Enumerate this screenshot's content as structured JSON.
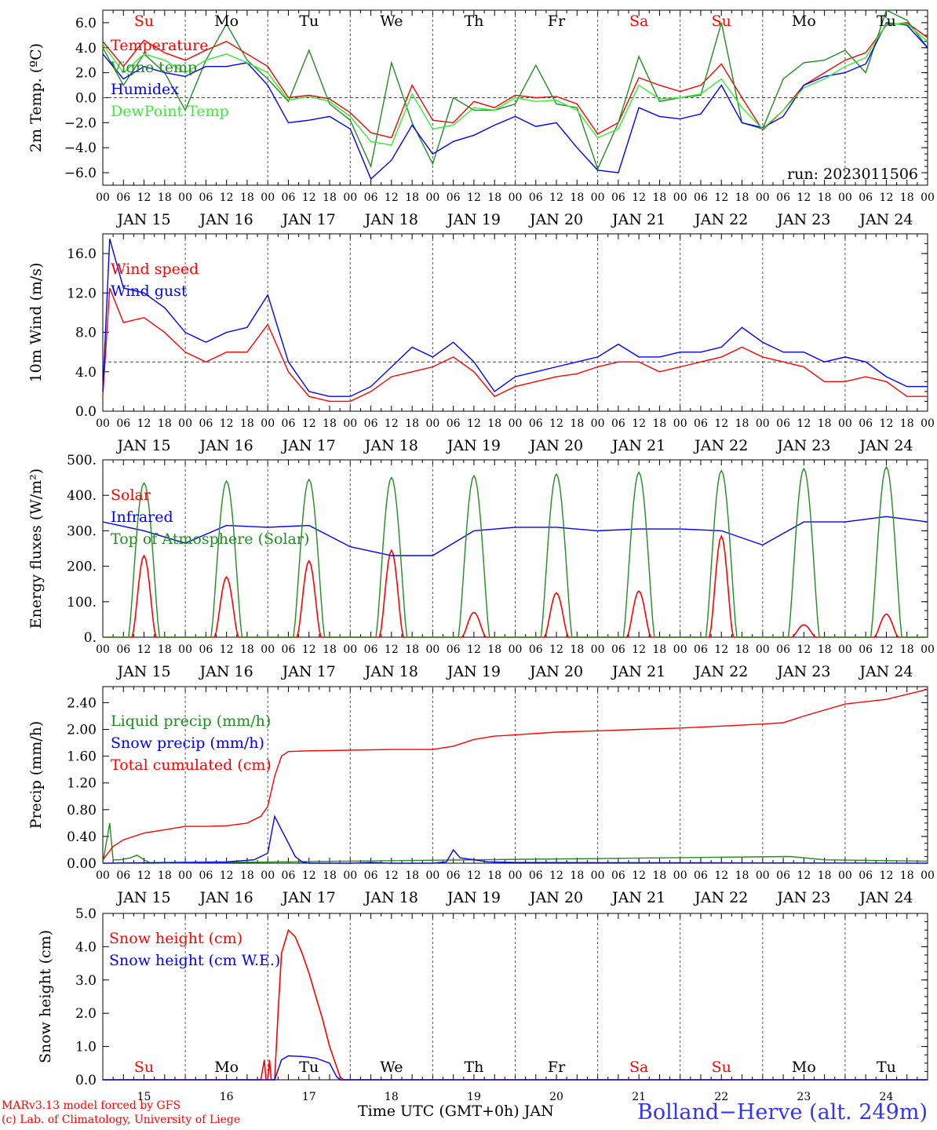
{
  "run_label": "run: 2023011506",
  "station": "Bolland−Herve (alt. 249m)",
  "time_axis_label": "Time UTC (GMT+0h) JAN",
  "credit_line1": "MARv3.13 model forced by GFS",
  "credit_line2": "(c) Lab. of Climatology, University of Liege",
  "weekdays": [
    "Su",
    "Mo",
    "Tu",
    "We",
    "Th",
    "Fr",
    "Sa",
    "Su",
    "Mo",
    "Tu"
  ],
  "weekday_colors": [
    "#ff0000",
    "#000000",
    "#000000",
    "#000000",
    "#000000",
    "#000000",
    "#ff0000",
    "#ff0000",
    "#000000",
    "#000000"
  ],
  "day_labels": [
    "JAN 15",
    "JAN 16",
    "JAN 17",
    "JAN 18",
    "JAN 19",
    "JAN 20",
    "JAN 21",
    "JAN 22",
    "JAN 23",
    "JAN 24"
  ],
  "day_numbers": [
    "15",
    "16",
    "17",
    "18",
    "19",
    "20",
    "21",
    "22",
    "23",
    "24"
  ],
  "hour_ticks": [
    "00",
    "06",
    "12",
    "18"
  ],
  "chart_data": [
    {
      "type": "line",
      "id": "temp",
      "ylabel": "2m Temp. (ºC)",
      "ylim": [
        -7,
        7
      ],
      "yticks": [
        -6,
        -4,
        -2,
        0,
        2,
        4,
        6
      ],
      "ytick_labels": [
        "−6.0",
        "−4.0",
        "−2.0",
        "0.0",
        "2.0",
        "4.0",
        "6.0"
      ],
      "ref_line": 0,
      "x_unit": "hours since JAN 15 00 UTC",
      "series": [
        {
          "name": "Temperature",
          "color": "#ff0000",
          "x": [
            0,
            6,
            12,
            18,
            24,
            30,
            36,
            42,
            48,
            54,
            60,
            66,
            72,
            78,
            84,
            90,
            96,
            102,
            108,
            114,
            120,
            126,
            132,
            138,
            144,
            150,
            156,
            162,
            168,
            174,
            180,
            186,
            192,
            198,
            204,
            210,
            216,
            222,
            228,
            234,
            240
          ],
          "y": [
            4.5,
            2.5,
            4.6,
            3.6,
            3.0,
            3.8,
            4.5,
            3.5,
            2.5,
            0.0,
            0.2,
            -0.1,
            -1.2,
            -2.8,
            -3.2,
            1.0,
            -1.8,
            -2.0,
            -0.3,
            -0.8,
            0.2,
            0.0,
            0.1,
            -0.5,
            -2.9,
            -2.0,
            1.6,
            1.0,
            0.5,
            1.0,
            2.7,
            0.0,
            -2.6,
            -1.0,
            1.0,
            2.0,
            3.0,
            3.6,
            5.8,
            6.0,
            4.8
          ]
        },
        {
          "name": "Vigne temp",
          "color": "#228b22",
          "x": [
            0,
            6,
            12,
            18,
            24,
            30,
            36,
            42,
            48,
            54,
            60,
            66,
            72,
            78,
            84,
            90,
            96,
            102,
            108,
            114,
            120,
            126,
            132,
            138,
            144,
            150,
            156,
            162,
            168,
            174,
            180,
            186,
            192,
            198,
            204,
            210,
            216,
            222,
            228,
            234,
            240
          ],
          "y": [
            4.0,
            1.0,
            3.5,
            2.0,
            -1.0,
            3.0,
            5.9,
            3.0,
            1.5,
            -0.3,
            3.8,
            -0.5,
            -1.8,
            -5.5,
            2.8,
            -2.0,
            -5.3,
            0.0,
            -1.0,
            -1.0,
            -0.5,
            2.6,
            -0.5,
            -0.8,
            -5.7,
            -2.0,
            3.3,
            -0.3,
            0.0,
            0.2,
            6.0,
            -2.0,
            -2.5,
            1.5,
            2.8,
            3.0,
            3.8,
            2.0,
            7.0,
            6.2,
            4.0
          ]
        },
        {
          "name": "Humidex",
          "color": "#0000ff",
          "x": [
            0,
            6,
            12,
            18,
            24,
            30,
            36,
            42,
            48,
            54,
            60,
            66,
            72,
            78,
            84,
            90,
            96,
            102,
            108,
            114,
            120,
            126,
            132,
            138,
            144,
            150,
            156,
            162,
            168,
            174,
            180,
            186,
            192,
            198,
            204,
            210,
            216,
            222,
            228,
            234,
            240
          ],
          "y": [
            3.5,
            1.5,
            2.5,
            2.0,
            1.7,
            2.5,
            2.5,
            2.8,
            1.0,
            -2.0,
            -1.8,
            -1.5,
            -2.5,
            -6.5,
            -5.0,
            -2.2,
            -4.5,
            -3.5,
            -3.0,
            -2.2,
            -1.5,
            -2.3,
            -2.0,
            -4.0,
            -5.8,
            -6.0,
            -0.8,
            -1.5,
            -1.7,
            -1.3,
            1.0,
            -2.0,
            -2.4,
            -1.5,
            1.0,
            1.7,
            2.0,
            2.7,
            6.0,
            5.8,
            4.0
          ]
        },
        {
          "name": "DewPoint Temp",
          "color": "#33ee33",
          "x": [
            0,
            6,
            12,
            18,
            24,
            30,
            36,
            42,
            48,
            54,
            60,
            66,
            72,
            78,
            84,
            90,
            96,
            102,
            108,
            114,
            120,
            126,
            132,
            138,
            144,
            150,
            156,
            162,
            168,
            174,
            180,
            186,
            192,
            198,
            204,
            210,
            216,
            222,
            228,
            234,
            240
          ],
          "y": [
            4.3,
            2.0,
            3.5,
            3.0,
            2.0,
            3.0,
            3.5,
            2.8,
            2.0,
            -0.2,
            0.1,
            -0.3,
            -1.5,
            -3.5,
            -3.8,
            0.3,
            -2.5,
            -2.2,
            -0.8,
            -1.0,
            0.0,
            -0.3,
            -0.2,
            -1.0,
            -3.2,
            -2.5,
            1.0,
            -0.1,
            0.0,
            0.3,
            1.5,
            -0.8,
            -2.5,
            -1.0,
            0.8,
            1.5,
            2.5,
            3.2,
            5.9,
            5.9,
            4.5
          ]
        }
      ]
    },
    {
      "type": "line",
      "id": "wind",
      "ylabel": "10m Wind (m/s)",
      "ylim": [
        0,
        18
      ],
      "yticks": [
        0,
        4,
        8,
        12,
        16
      ],
      "ytick_labels": [
        "0.0",
        "4.0",
        "8.0",
        "12.0",
        "16.0"
      ],
      "ref_line": 5,
      "x_unit": "hours since JAN 15 00 UTC",
      "series": [
        {
          "name": "Wind speed",
          "color": "#ff0000",
          "x": [
            0,
            2,
            6,
            12,
            18,
            24,
            30,
            36,
            42,
            48,
            54,
            60,
            66,
            72,
            78,
            84,
            90,
            96,
            102,
            108,
            114,
            120,
            126,
            132,
            138,
            144,
            150,
            156,
            162,
            168,
            174,
            180,
            186,
            192,
            198,
            204,
            210,
            216,
            222,
            228,
            234,
            240
          ],
          "y": [
            1.5,
            12.5,
            9.0,
            9.5,
            8.0,
            6.0,
            5.0,
            6.0,
            6.0,
            8.8,
            4.0,
            1.5,
            1.0,
            1.0,
            2.0,
            3.5,
            4.0,
            4.5,
            5.5,
            4.0,
            1.5,
            2.5,
            3.0,
            3.5,
            3.8,
            4.5,
            5.0,
            5.0,
            4.0,
            4.5,
            5.0,
            5.5,
            6.5,
            5.5,
            5.0,
            4.5,
            3.0,
            3.0,
            3.5,
            3.0,
            1.5,
            1.5
          ]
        },
        {
          "name": "Wind gust",
          "color": "#0000ff",
          "x": [
            0,
            2,
            6,
            12,
            18,
            24,
            30,
            36,
            42,
            48,
            54,
            60,
            66,
            72,
            78,
            84,
            90,
            96,
            102,
            108,
            114,
            120,
            126,
            132,
            138,
            144,
            150,
            156,
            162,
            168,
            174,
            180,
            186,
            192,
            198,
            204,
            210,
            216,
            222,
            228,
            234,
            240
          ],
          "y": [
            2.0,
            17.5,
            12.5,
            12.0,
            10.5,
            8.0,
            7.0,
            8.0,
            8.5,
            11.8,
            5.0,
            2.0,
            1.5,
            1.5,
            2.5,
            4.5,
            6.5,
            5.5,
            7.0,
            5.0,
            2.0,
            3.5,
            4.0,
            4.5,
            5.0,
            5.5,
            6.8,
            5.5,
            5.5,
            6.0,
            6.0,
            6.5,
            8.5,
            7.0,
            6.0,
            6.0,
            5.0,
            5.5,
            5.0,
            3.5,
            2.5,
            2.5
          ]
        }
      ]
    },
    {
      "type": "line",
      "id": "energy",
      "ylabel": "Energy fluxes (W/m²)",
      "ylim": [
        0,
        500
      ],
      "yticks": [
        0,
        100,
        200,
        300,
        400,
        500
      ],
      "ytick_labels": [
        "0.",
        "100.",
        "200.",
        "300.",
        "400.",
        "500."
      ],
      "x_unit": "hours since JAN 15 00 UTC",
      "solar_peaks": [
        230,
        170,
        215,
        245,
        70,
        125,
        130,
        285,
        35,
        65
      ],
      "toa_peaks": [
        435,
        440,
        445,
        450,
        455,
        460,
        465,
        470,
        475,
        480
      ],
      "series": [
        {
          "name": "Solar",
          "color": "#ff0000"
        },
        {
          "name": "Infrared",
          "color": "#0000ff",
          "x": [
            0,
            12,
            24,
            36,
            48,
            60,
            72,
            84,
            96,
            108,
            120,
            132,
            144,
            156,
            168,
            180,
            192,
            204,
            216,
            228,
            240
          ],
          "y": [
            325,
            300,
            265,
            315,
            310,
            315,
            255,
            230,
            230,
            300,
            310,
            310,
            300,
            305,
            305,
            300,
            260,
            325,
            325,
            340,
            325
          ]
        },
        {
          "name": "Top of Atmosphere (Solar)",
          "color": "#228b22"
        }
      ]
    },
    {
      "type": "line",
      "id": "precip",
      "ylabel": "Precip (mm/h)",
      "ylim": [
        0,
        2.64
      ],
      "yticks": [
        0,
        0.4,
        0.8,
        1.2,
        1.6,
        2.0,
        2.4
      ],
      "ytick_labels": [
        "0.00",
        "0.40",
        "0.80",
        "1.20",
        "1.60",
        "2.00",
        "2.40"
      ],
      "x_unit": "hours since JAN 15 00 UTC",
      "series": [
        {
          "name": "Liquid precip (mm/h)",
          "color": "#228b22",
          "x": [
            0,
            2,
            3,
            4,
            5,
            6,
            8,
            10,
            12,
            14,
            200,
            210,
            240
          ],
          "y": [
            0,
            0.6,
            0.05,
            0.05,
            0.05,
            0.06,
            0.08,
            0.12,
            0.05,
            0.0,
            0.1,
            0.05,
            0.03
          ]
        },
        {
          "name": "Snow precip (mm/h)",
          "color": "#0000ff",
          "x": [
            0,
            36,
            44,
            46,
            48,
            50,
            52,
            54,
            56,
            58,
            60,
            66,
            72,
            78,
            84,
            96,
            100,
            102,
            104,
            108,
            112,
            120,
            240
          ],
          "y": [
            0,
            0.02,
            0.05,
            0.1,
            0.15,
            0.7,
            0.5,
            0.3,
            0.1,
            0.02,
            0,
            0,
            0,
            0.01,
            0,
            0,
            0.02,
            0.2,
            0.08,
            0.05,
            0.02,
            0.01,
            0
          ]
        },
        {
          "name": "Total cumulated (cm)",
          "color": "#ff0000",
          "x": [
            0,
            3,
            6,
            12,
            18,
            24,
            30,
            36,
            42,
            46,
            48,
            50,
            52,
            54,
            60,
            72,
            84,
            96,
            102,
            108,
            114,
            120,
            132,
            144,
            156,
            168,
            180,
            192,
            198,
            204,
            216,
            228,
            240
          ],
          "y": [
            0.05,
            0.25,
            0.35,
            0.45,
            0.5,
            0.55,
            0.55,
            0.56,
            0.6,
            0.7,
            0.85,
            1.3,
            1.6,
            1.67,
            1.68,
            1.69,
            1.7,
            1.7,
            1.75,
            1.85,
            1.9,
            1.92,
            1.96,
            1.98,
            2.0,
            2.02,
            2.05,
            2.08,
            2.1,
            2.2,
            2.38,
            2.45,
            2.6
          ]
        }
      ]
    },
    {
      "type": "line",
      "id": "snow",
      "ylabel": "Snow height (cm)",
      "ylim": [
        0,
        5
      ],
      "yticks": [
        0,
        1,
        2,
        3,
        4,
        5
      ],
      "ytick_labels": [
        "0.0",
        "1.0",
        "2.0",
        "3.0",
        "4.0",
        "5.0"
      ],
      "x_unit": "hours since JAN 15 00 UTC",
      "series": [
        {
          "name": "Snow height (cm)",
          "color": "#ff0000",
          "x": [
            0,
            46,
            47,
            47.5,
            48,
            48.5,
            49,
            50,
            51,
            52,
            54,
            56,
            58,
            60,
            62,
            64,
            66,
            68,
            69,
            70,
            240
          ],
          "y": [
            0,
            0,
            0.6,
            0,
            0,
            0.6,
            0,
            0,
            2.0,
            3.8,
            4.5,
            4.3,
            3.8,
            3.2,
            2.5,
            1.8,
            1.0,
            0.4,
            0.1,
            0,
            0
          ]
        },
        {
          "name": "Snow height (cm W.E.)",
          "color": "#0000ff",
          "x": [
            0,
            50,
            52,
            54,
            58,
            62,
            66,
            68,
            69,
            240
          ],
          "y": [
            0,
            0,
            0.6,
            0.72,
            0.7,
            0.65,
            0.5,
            0.1,
            0,
            0
          ]
        }
      ]
    }
  ]
}
